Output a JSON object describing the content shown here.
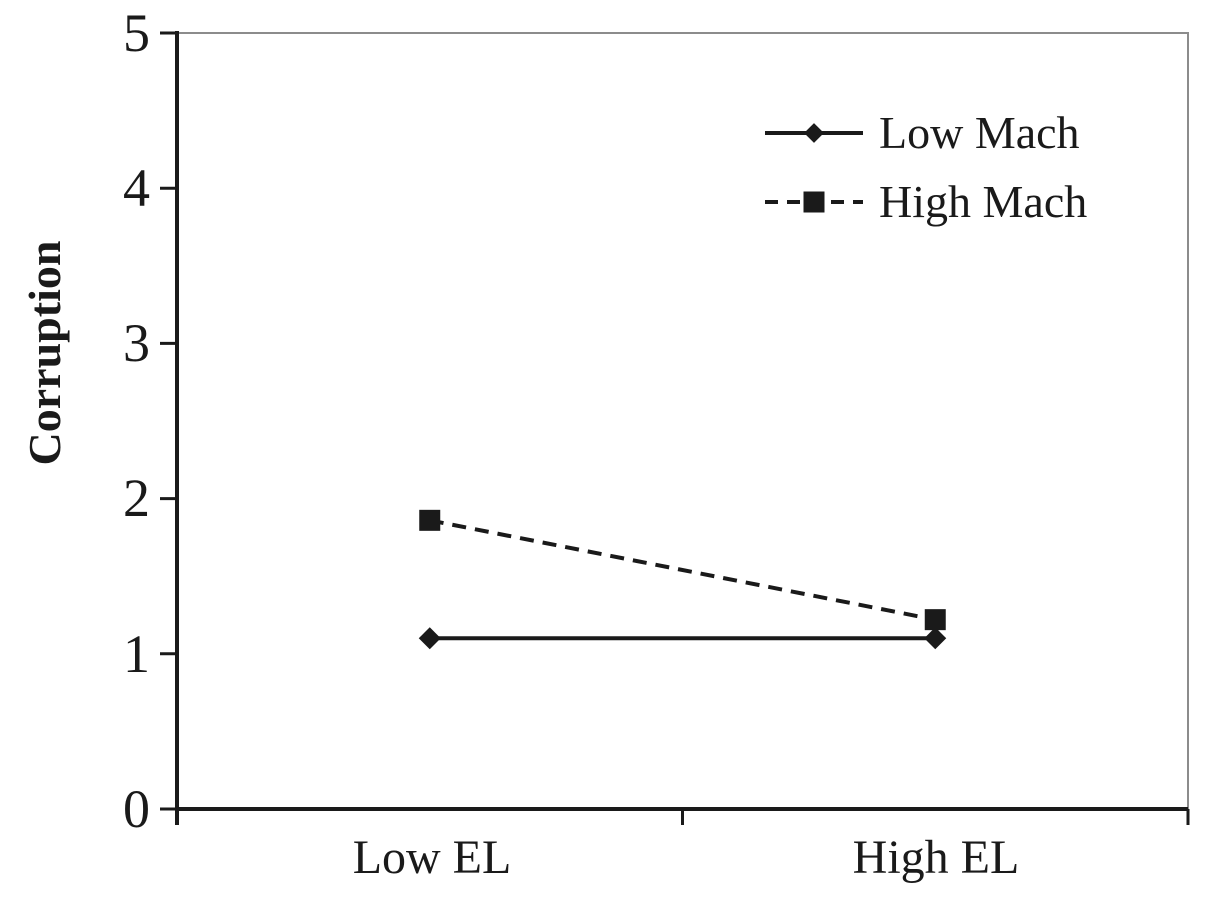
{
  "chart_data": {
    "type": "line",
    "title": "",
    "xlabel": "",
    "ylabel": "Corruption",
    "categories": [
      "Low EL",
      "High EL"
    ],
    "series": [
      {
        "name": "Low Mach",
        "values": [
          1.1,
          1.1
        ],
        "line_style": "solid",
        "marker": "diamond",
        "color": "#1a1a1a"
      },
      {
        "name": "High Mach",
        "values": [
          1.86,
          1.22
        ],
        "line_style": "dashed",
        "marker": "square",
        "color": "#1a1a1a"
      }
    ],
    "ylim": [
      0,
      5
    ],
    "yticks": [
      0,
      1,
      2,
      3,
      4,
      5
    ],
    "grid": false,
    "legend_position": "top-right",
    "axis_color": "#1a1a1a",
    "frame_color": "#8c8c8c",
    "background": "#ffffff"
  }
}
